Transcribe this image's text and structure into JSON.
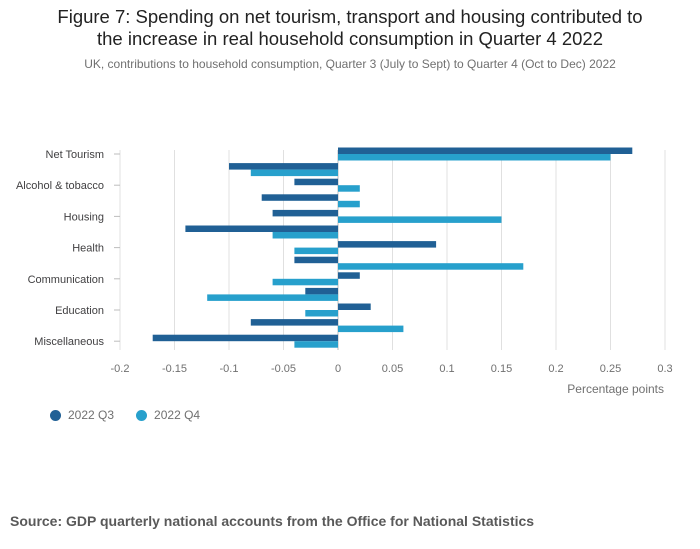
{
  "title_line1": "Figure 7: Spending on net tourism, transport and housing contributed to",
  "title_line2": "the increase in real household consumption in Quarter 4 2022",
  "subtitle": "UK, contributions to household consumption, Quarter 3 (July to Sept) to Quarter 4 (Oct to Dec) 2022",
  "source": "Source: GDP quarterly national accounts from the Office for National Statistics",
  "colors": {
    "q3": "#206095",
    "q4": "#27a0cc",
    "grid": "#e0e0e0",
    "axis_text": "#707070"
  },
  "chart_data": {
    "type": "bar",
    "orientation": "horizontal",
    "categories": [
      "Net Tourism",
      "",
      "Alcohol & tobacco",
      "",
      "Housing",
      "",
      "Health",
      "",
      "Communication",
      "",
      "Education",
      "",
      "Miscellaneous"
    ],
    "series": [
      {
        "name": "2022 Q3",
        "values": [
          0.27,
          -0.1,
          -0.04,
          -0.07,
          -0.06,
          -0.14,
          0.09,
          -0.04,
          0.02,
          -0.03,
          0.03,
          -0.08,
          -0.17
        ]
      },
      {
        "name": "2022 Q4",
        "values": [
          0.25,
          -0.08,
          0.02,
          0.02,
          0.15,
          -0.06,
          -0.04,
          0.17,
          -0.06,
          -0.12,
          -0.03,
          0.06,
          -0.04
        ]
      }
    ],
    "xlabel": "Percentage points",
    "xlim": [
      -0.2,
      0.3
    ],
    "xticks": [
      -0.2,
      -0.15,
      -0.1,
      -0.05,
      0,
      0.05,
      0.1,
      0.15,
      0.2,
      0.25,
      0.3
    ],
    "xtick_labels": [
      "-0.2",
      "-0.15",
      "-0.1",
      "-0.05",
      "0",
      "0.05",
      "0.1",
      "0.15",
      "0.2",
      "0.25",
      "0.3"
    ],
    "grid": true,
    "legend_position": "bottom-left"
  }
}
